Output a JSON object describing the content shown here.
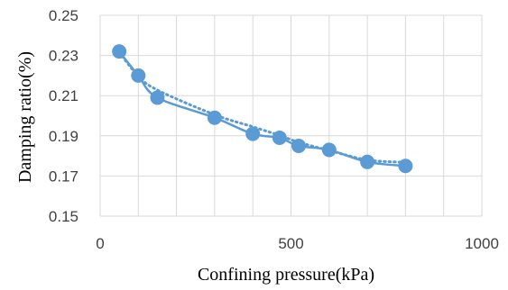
{
  "chart_data": {
    "type": "line",
    "xlabel": "Confining pressure(kPa)",
    "ylabel": "Damping ratio(%)",
    "xlim": [
      0,
      1000
    ],
    "ylim": [
      0.15,
      0.25
    ],
    "x_ticks": [
      0,
      500,
      1000
    ],
    "x_tick_labels": [
      "0",
      "500",
      "1000"
    ],
    "y_ticks": [
      0.15,
      0.17,
      0.19,
      0.21,
      0.23,
      0.25
    ],
    "y_tick_labels": [
      "0.15",
      "0.17",
      "0.19",
      "0.21",
      "0.23",
      "0.25"
    ],
    "grid": true,
    "series": [
      {
        "style": "smooth solid line with circle markers",
        "color": "#5b9bd5",
        "x": [
          50,
          100,
          150,
          300,
          400,
          470,
          520,
          600,
          700,
          800
        ],
        "y": [
          0.232,
          0.22,
          0.209,
          0.199,
          0.191,
          0.189,
          0.185,
          0.183,
          0.177,
          0.175
        ]
      },
      {
        "style": "dotted trendline",
        "color": "#5b9bd5",
        "x": [
          50,
          100,
          150,
          300,
          400,
          470,
          520,
          600,
          700,
          800
        ],
        "y": [
          0.2315,
          0.2198,
          0.2128,
          0.2005,
          0.1945,
          0.1902,
          0.1868,
          0.1827,
          0.178,
          0.1768
        ]
      }
    ],
    "colors": {
      "series": "#5b9bd5",
      "grid": "#d9d9d9"
    }
  }
}
